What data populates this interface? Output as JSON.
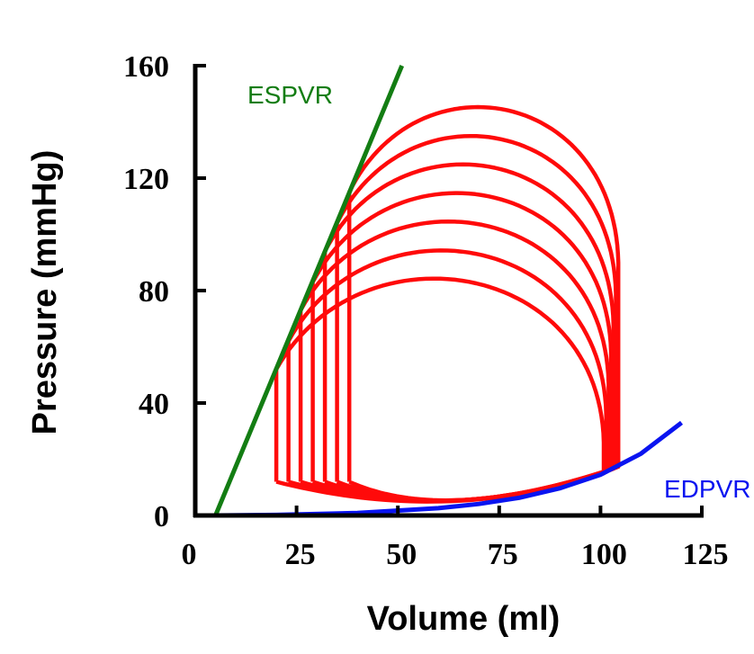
{
  "chart_data": {
    "type": "line",
    "title": "",
    "xlabel": "Volume (ml)",
    "ylabel": "Pressure (mmHg)",
    "xlim": [
      0,
      125
    ],
    "ylim": [
      0,
      160
    ],
    "xticks": [
      "0",
      "25",
      "50",
      "75",
      "100",
      "125"
    ],
    "yticks": [
      "0",
      "40",
      "80",
      "120",
      "160"
    ],
    "grid": false,
    "colors": {
      "espvr": "#137d13",
      "edpvr": "#0a14f0",
      "loops": "#ff0a0a",
      "axis": "#000000"
    },
    "espvr": {
      "label": "ESPVR",
      "points": [
        [
          5,
          0
        ],
        [
          51,
          160
        ]
      ]
    },
    "edpvr": {
      "label": "EDPVR",
      "points": [
        [
          5,
          0
        ],
        [
          20,
          0.2
        ],
        [
          40,
          0.9
        ],
        [
          60,
          2.6
        ],
        [
          70,
          4.1
        ],
        [
          80,
          6.3
        ],
        [
          90,
          9.7
        ],
        [
          100,
          14.5
        ],
        [
          110,
          22
        ],
        [
          120,
          33
        ]
      ]
    },
    "pv_loops": [
      {
        "end_systolic_volume": 20,
        "end_systolic_pressure": 52,
        "end_diastolic_volume": 100.8,
        "end_diastolic_pressure": 15,
        "aortic_opening_pressure": 26,
        "peak_pressure": 90
      },
      {
        "end_systolic_volume": 23,
        "end_systolic_pressure": 62,
        "end_diastolic_volume": 101.4,
        "end_diastolic_pressure": 15.5,
        "aortic_opening_pressure": 36,
        "peak_pressure": 100
      },
      {
        "end_systolic_volume": 26,
        "end_systolic_pressure": 73,
        "end_diastolic_volume": 102,
        "end_diastolic_pressure": 16,
        "aortic_opening_pressure": 47,
        "peak_pressure": 110
      },
      {
        "end_systolic_volume": 29,
        "end_systolic_pressure": 83,
        "end_diastolic_volume": 102.6,
        "end_diastolic_pressure": 16.3,
        "aortic_opening_pressure": 58,
        "peak_pressure": 120
      },
      {
        "end_systolic_volume": 32,
        "end_systolic_pressure": 94,
        "end_diastolic_volume": 103.2,
        "end_diastolic_pressure": 16.6,
        "aortic_opening_pressure": 68,
        "peak_pressure": 130
      },
      {
        "end_systolic_volume": 35,
        "end_systolic_pressure": 104,
        "end_diastolic_volume": 103.8,
        "end_diastolic_pressure": 17,
        "aortic_opening_pressure": 79,
        "peak_pressure": 140
      },
      {
        "end_systolic_volume": 38,
        "end_systolic_pressure": 115,
        "end_diastolic_volume": 104.4,
        "end_diastolic_pressure": 17.3,
        "aortic_opening_pressure": 90,
        "peak_pressure": 150
      }
    ]
  }
}
